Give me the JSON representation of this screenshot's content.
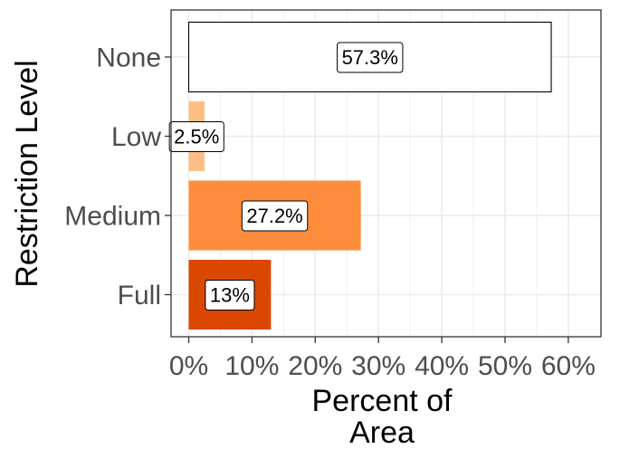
{
  "chart_data": {
    "type": "bar",
    "orientation": "horizontal",
    "categories": [
      "None",
      "Low",
      "Medium",
      "Full"
    ],
    "values": [
      57.3,
      2.5,
      27.2,
      13
    ],
    "data_labels": [
      "57.3%",
      "2.5%",
      "27.2%",
      "13%"
    ],
    "bar_colors": [
      "#ffffff",
      "#fdbe85",
      "#fd8d3c",
      "#d94701"
    ],
    "bar_outline": [
      "#000000",
      "none",
      "none",
      "none"
    ],
    "xlabel_lines": [
      "Percent of",
      "Area"
    ],
    "ylabel": "Restriction Level",
    "xlim": [
      0,
      60
    ],
    "x_ticks": [
      0,
      10,
      20,
      30,
      40,
      50,
      60
    ],
    "x_tick_labels": [
      "0%",
      "10%",
      "20%",
      "30%",
      "40%",
      "50%",
      "60%"
    ],
    "grid": true,
    "legend": "none"
  }
}
